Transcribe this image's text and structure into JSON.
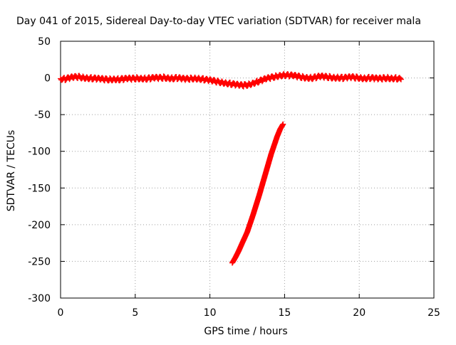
{
  "chart_data": {
    "type": "scatter",
    "title": "Day 041 of 2015, Sidereal Day-to-day VTEC variation (SDTVAR) for receiver mala",
    "xlabel": "GPS time / hours",
    "ylabel": "SDTVAR / TECUs",
    "xlim": [
      0,
      25
    ],
    "ylim": [
      -300,
      50
    ],
    "xticks": [
      0,
      5,
      10,
      15,
      20,
      25
    ],
    "yticks": [
      50,
      0,
      -50,
      -100,
      -150,
      -200,
      -250,
      -300
    ],
    "grid": true,
    "legend": "none",
    "marker": "plus",
    "color": "#ff0000",
    "series": [
      {
        "points": [
          [
            0.0,
            -1
          ],
          [
            0.3,
            -1.5
          ],
          [
            0.6,
            0
          ],
          [
            0.9,
            1
          ],
          [
            1.2,
            1.5
          ],
          [
            1.5,
            0.5
          ],
          [
            1.8,
            0
          ],
          [
            2.1,
            -0.5
          ],
          [
            2.4,
            -1
          ],
          [
            2.7,
            -1.5
          ],
          [
            3.0,
            -2
          ],
          [
            3.3,
            -2
          ],
          [
            3.6,
            -1.5
          ],
          [
            3.9,
            -2
          ],
          [
            4.2,
            -1.5
          ],
          [
            4.5,
            -1
          ],
          [
            4.8,
            -1
          ],
          [
            5.1,
            -0.5
          ],
          [
            5.4,
            -0.5
          ],
          [
            5.7,
            -1
          ],
          [
            6.0,
            -0.5
          ],
          [
            6.3,
            0
          ],
          [
            6.6,
            0
          ],
          [
            6.9,
            0.5
          ],
          [
            7.2,
            0
          ],
          [
            7.5,
            -0.5
          ],
          [
            7.8,
            0
          ],
          [
            8.1,
            -1
          ],
          [
            8.4,
            -1.5
          ],
          [
            8.7,
            -1
          ],
          [
            9.0,
            -0.5
          ],
          [
            9.3,
            -1
          ],
          [
            9.6,
            -2
          ],
          [
            9.9,
            -3
          ],
          [
            10.2,
            -4
          ],
          [
            10.5,
            -5
          ],
          [
            10.8,
            -6
          ],
          [
            11.1,
            -7
          ],
          [
            11.4,
            -8
          ],
          [
            11.7,
            -9
          ],
          [
            12.0,
            -10
          ],
          [
            12.3,
            -10
          ],
          [
            12.6,
            -9
          ],
          [
            12.9,
            -7
          ],
          [
            13.2,
            -5
          ],
          [
            13.5,
            -3
          ],
          [
            13.8,
            -1
          ],
          [
            14.1,
            0.5
          ],
          [
            14.4,
            2
          ],
          [
            14.7,
            3.5
          ],
          [
            15.0,
            4
          ],
          [
            15.3,
            3.5
          ],
          [
            15.6,
            3
          ],
          [
            15.9,
            2
          ],
          [
            16.2,
            1
          ],
          [
            16.5,
            0.5
          ],
          [
            16.8,
            0
          ],
          [
            17.1,
            1
          ],
          [
            17.4,
            2
          ],
          [
            17.7,
            1.5
          ],
          [
            18.0,
            1
          ],
          [
            18.3,
            0.5
          ],
          [
            18.6,
            0.5
          ],
          [
            18.9,
            0
          ],
          [
            19.2,
            0.5
          ],
          [
            19.5,
            1
          ],
          [
            19.8,
            0.5
          ],
          [
            20.1,
            0
          ],
          [
            20.4,
            -0.5
          ],
          [
            20.7,
            0
          ],
          [
            21.0,
            -0.5
          ],
          [
            21.3,
            -1
          ],
          [
            21.6,
            -0.5
          ],
          [
            21.9,
            0
          ],
          [
            22.2,
            -0.5
          ],
          [
            22.5,
            -0.5
          ],
          [
            22.8,
            -2
          ]
        ]
      },
      {
        "points": [
          [
            11.5,
            -252
          ],
          [
            11.7,
            -245
          ],
          [
            11.9,
            -237
          ],
          [
            12.1,
            -228
          ],
          [
            12.3,
            -219
          ],
          [
            12.5,
            -210
          ],
          [
            12.7,
            -198
          ],
          [
            12.9,
            -186
          ],
          [
            13.1,
            -173
          ],
          [
            13.3,
            -160
          ],
          [
            13.5,
            -146
          ],
          [
            13.7,
            -132
          ],
          [
            13.9,
            -118
          ],
          [
            14.1,
            -104
          ],
          [
            14.3,
            -92
          ],
          [
            14.5,
            -80
          ],
          [
            14.7,
            -70
          ],
          [
            14.9,
            -63
          ]
        ]
      }
    ]
  }
}
